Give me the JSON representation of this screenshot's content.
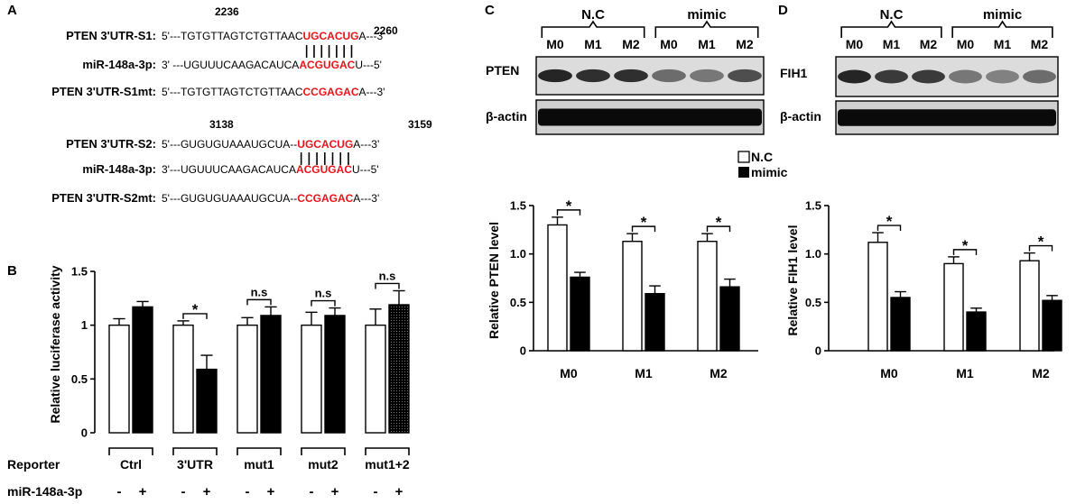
{
  "panel_letters": {
    "a": "A",
    "b": "B",
    "c": "C",
    "d": "D"
  },
  "colors": {
    "seed": "#e8141b",
    "text": "#000000"
  },
  "panel_a": {
    "s1_positions": {
      "start": "2236",
      "end": "2260"
    },
    "s2_positions": {
      "start": "3138",
      "end": "3159"
    },
    "rows": [
      {
        "label": "PTEN 3'UTR-S1:",
        "prefix": "5'---TGTGTTAGTCTGTTAAC",
        "seed": "UGCACUG",
        "suffix": "A---3'"
      },
      {
        "label": "miR-148a-3p:",
        "prefix": "3' ---UGUUUCAAGACAUCA",
        "seed": "ACGUGAC",
        "suffix": "U---5'"
      },
      {
        "label": "PTEN 3'UTR-S1mt:",
        "prefix": "5'---TGTGTTAGTCTGTTAAC",
        "seed": "CCGAGAC",
        "suffix": "A---3'"
      },
      {
        "label": "PTEN 3'UTR-S2:",
        "prefix": "5'---GUGUGUAAAUGCUA--",
        "seed": "UGCACUG",
        "suffix": "A---3'"
      },
      {
        "label": "miR-148a-3p:",
        "prefix": "3'---UGUUUCAAGACAUCA",
        "seed": "ACGUGAC",
        "suffix": "U---5'"
      },
      {
        "label": "PTEN 3'UTR-S2mt:",
        "prefix": "5'---GUGUGUAAAUGCUA--",
        "seed": "CCGAGAC",
        "suffix": "A---3'"
      }
    ]
  },
  "blots": {
    "group_labels": [
      "N.C",
      "mimic"
    ],
    "lane_labels": [
      "M0",
      "M1",
      "M2",
      "M0",
      "M1",
      "M2"
    ],
    "c_target": "PTEN",
    "d_target": "FIH1",
    "loading": "β-actin",
    "legend": [
      "N.C",
      "mimic"
    ]
  },
  "chart_data": [
    {
      "panel": "B",
      "type": "bar",
      "ylabel": "Relative luciferase activity",
      "ylim": [
        0,
        1.5
      ],
      "yticks": [
        0,
        0.5,
        1,
        1.5
      ],
      "ytick_labels": [
        "0",
        "0.5",
        "1",
        "1.5"
      ],
      "categories": [
        "Ctrl",
        "3'UTR",
        "mut1",
        "mut2",
        "mut1+2"
      ],
      "row_labels": {
        "reporter": "Reporter",
        "mirna": "miR-148a-3p"
      },
      "sign_minus": "-",
      "sign_plus": "+",
      "series": [
        {
          "values": [
            1.0,
            1.0,
            1.0,
            1.0,
            1.0
          ],
          "errors": [
            0.06,
            0.04,
            0.07,
            0.12,
            0.15
          ],
          "fill": "white"
        },
        {
          "values": [
            1.17,
            0.59,
            1.09,
            1.09,
            1.19
          ],
          "errors": [
            0.05,
            0.13,
            0.08,
            0.07,
            0.13
          ],
          "fill": "black"
        }
      ],
      "significance": [
        "",
        "*",
        "n.s",
        "n.s",
        "n.s"
      ]
    },
    {
      "panel": "C",
      "type": "bar",
      "ylabel": "Relative PTEN level",
      "ylim": [
        0,
        1.5
      ],
      "yticks": [
        0,
        0.5,
        1.0,
        1.5
      ],
      "ytick_labels": [
        "0",
        "0.5",
        "1.0",
        "1.5"
      ],
      "categories": [
        "M0",
        "M1",
        "M2"
      ],
      "series": [
        {
          "name": "N.C",
          "values": [
            1.3,
            1.13,
            1.13
          ],
          "errors": [
            0.08,
            0.08,
            0.08
          ]
        },
        {
          "name": "mimic",
          "values": [
            0.76,
            0.59,
            0.66
          ],
          "errors": [
            0.05,
            0.08,
            0.08
          ]
        }
      ],
      "significance": [
        "*",
        "*",
        "*"
      ]
    },
    {
      "panel": "D",
      "type": "bar",
      "ylabel": "Relative FIH1 level",
      "ylim": [
        0,
        1.5
      ],
      "yticks": [
        0,
        0.5,
        1.0,
        1.5
      ],
      "ytick_labels": [
        "0",
        "0.5",
        "1.0",
        "1.5"
      ],
      "categories": [
        "M0",
        "M1",
        "M2"
      ],
      "series": [
        {
          "name": "N.C",
          "values": [
            1.12,
            0.9,
            0.93
          ],
          "errors": [
            0.1,
            0.07,
            0.08
          ]
        },
        {
          "name": "mimic",
          "values": [
            0.55,
            0.4,
            0.52
          ],
          "errors": [
            0.06,
            0.04,
            0.05
          ]
        }
      ],
      "significance": [
        "*",
        "*",
        "*"
      ]
    }
  ]
}
